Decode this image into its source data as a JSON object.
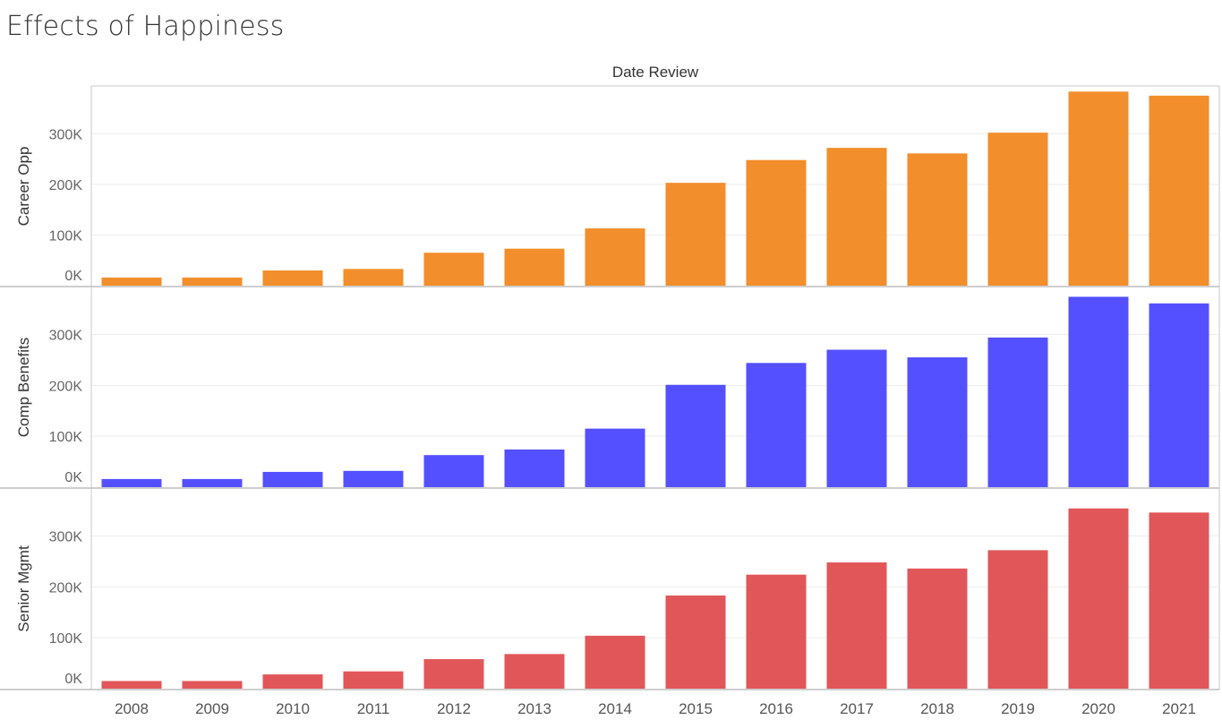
{
  "title": "Effects of Happiness",
  "chart_data": {
    "type": "bar",
    "column_header": "Date Review",
    "categories": [
      "2008",
      "2009",
      "2010",
      "2011",
      "2012",
      "2013",
      "2014",
      "2015",
      "2016",
      "2017",
      "2018",
      "2019",
      "2020",
      "2021"
    ],
    "ylim": [
      0,
      380000
    ],
    "yticks": [
      0,
      100000,
      200000,
      300000
    ],
    "ytick_labels": [
      "0K",
      "100K",
      "200K",
      "300K"
    ],
    "grid": true,
    "series": [
      {
        "name": "Career Opp",
        "color": "#f28e2b",
        "values": [
          16000,
          16000,
          30000,
          33000,
          65000,
          73000,
          113000,
          203000,
          248000,
          272000,
          261000,
          302000,
          383000,
          375000
        ]
      },
      {
        "name": "Comp Benefits",
        "color": "#5450ff",
        "values": [
          16000,
          16000,
          30000,
          32000,
          63000,
          74000,
          115000,
          201000,
          244000,
          270000,
          255000,
          294000,
          374000,
          361000
        ]
      },
      {
        "name": "Senior Mgmt",
        "color": "#e15759",
        "values": [
          15000,
          15000,
          28000,
          34000,
          58000,
          68000,
          104000,
          183000,
          224000,
          248000,
          236000,
          272000,
          354000,
          346000
        ]
      }
    ]
  }
}
